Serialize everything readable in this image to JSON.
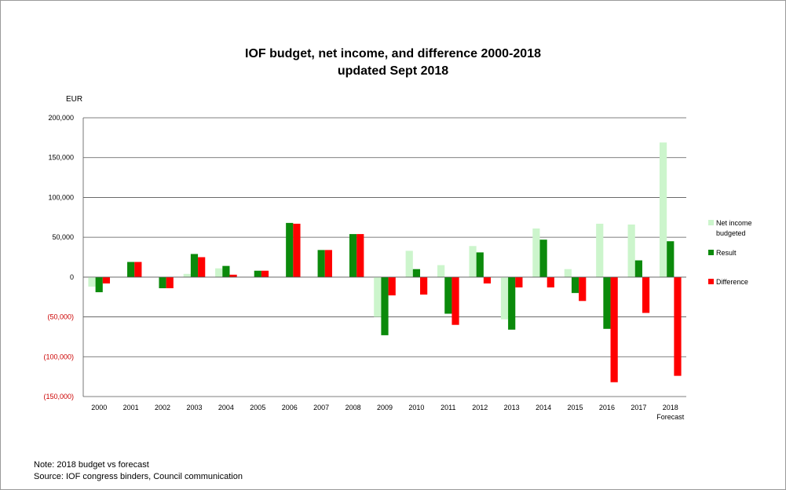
{
  "chart_data": {
    "type": "bar",
    "title": "IOF budget, net income, and difference 2000-2018",
    "subtitle": "updated Sept 2018",
    "ylabel": "EUR",
    "xlabel": "",
    "ylim": [
      -150000,
      200000
    ],
    "yticks": [
      200000,
      150000,
      100000,
      50000,
      0,
      -50000,
      -100000,
      -150000
    ],
    "ytick_labels": [
      "200,000",
      "150,000",
      "100,000",
      "50,000",
      "0",
      "(50,000)",
      "(100,000)",
      "(150,000)"
    ],
    "categories": [
      "2000",
      "2001",
      "2002",
      "2003",
      "2004",
      "2005",
      "2006",
      "2007",
      "2008",
      "2009",
      "2010",
      "2011",
      "2012",
      "2013",
      "2014",
      "2015",
      "2016",
      "2017",
      "2018"
    ],
    "category_sublabels": {
      "2018": "Forecast"
    },
    "legend_position": "right",
    "series": [
      {
        "name": "Net income budgeted",
        "color": "#ccf5cc",
        "values": [
          -12000,
          0,
          0,
          4000,
          11000,
          0,
          0,
          0,
          0,
          -50000,
          33000,
          15000,
          39000,
          -53000,
          61000,
          10000,
          67000,
          66000,
          169000
        ]
      },
      {
        "name": "Result",
        "color": "#0b8a0b",
        "values": [
          -19000,
          19000,
          -14000,
          29000,
          14000,
          8000,
          68000,
          34000,
          54000,
          -73000,
          10000,
          -46000,
          31000,
          -66000,
          47000,
          -20000,
          -65000,
          21000,
          45000
        ]
      },
      {
        "name": "Difference",
        "color": "#ff0000",
        "values": [
          -8000,
          19000,
          -14000,
          25000,
          3000,
          8000,
          67000,
          34000,
          54000,
          -23000,
          -22000,
          -60000,
          -8000,
          -13000,
          -13000,
          -30000,
          -132000,
          -45000,
          -124000
        ]
      }
    ]
  },
  "notes": {
    "line1": "Note: 2018 budget vs forecast",
    "line2": "Source: IOF congress binders, Council communication"
  }
}
